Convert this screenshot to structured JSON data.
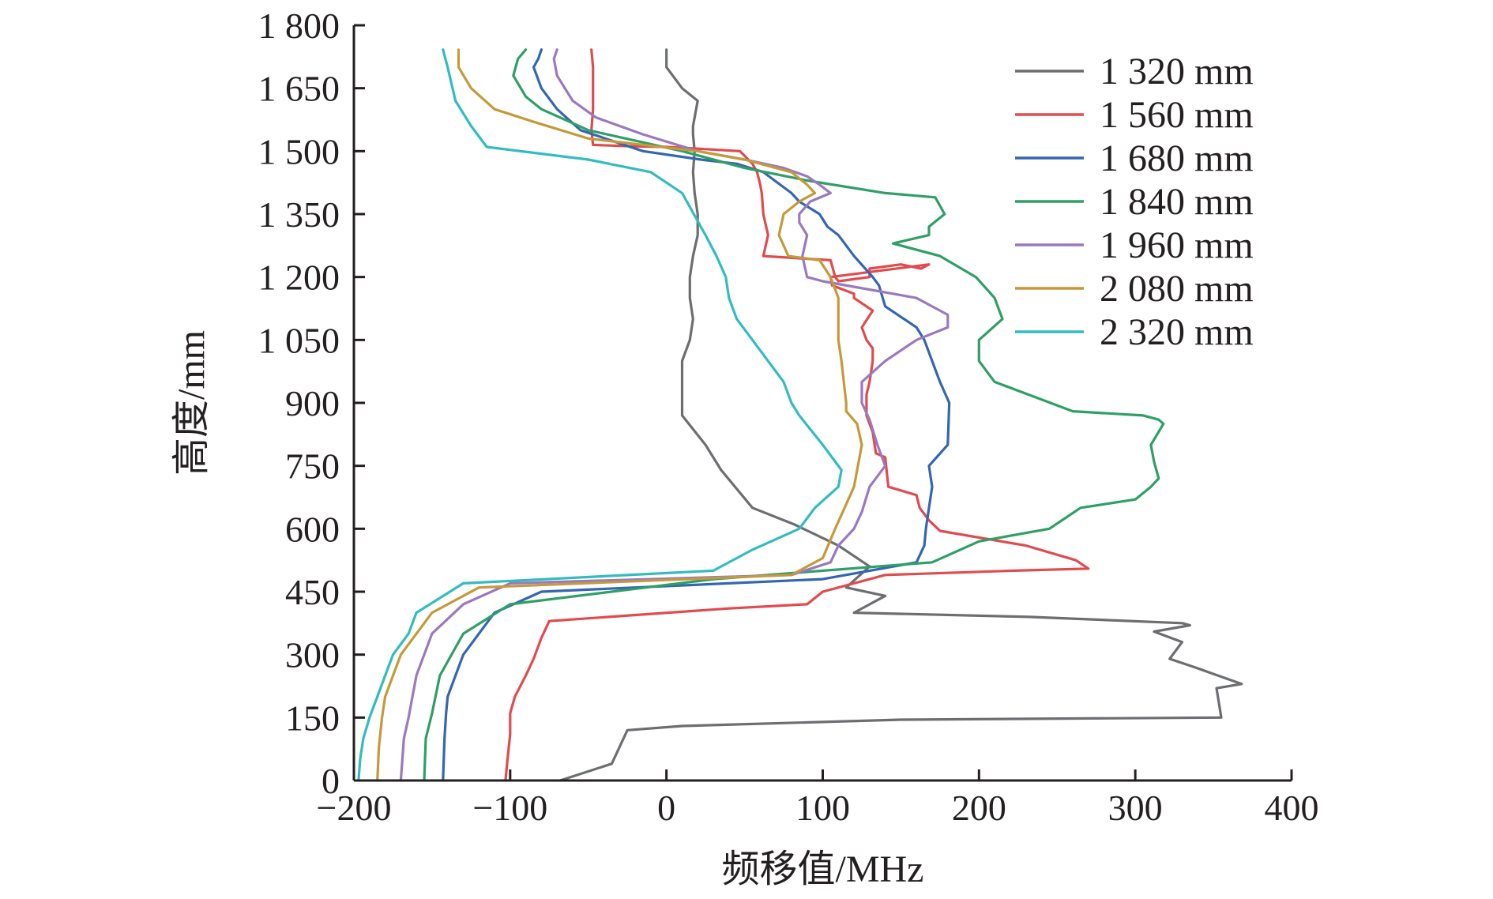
{
  "chart_data": {
    "type": "line",
    "title": "",
    "xlabel": "频移值/MHz",
    "ylabel": "高度/mm",
    "xlim": [
      -200,
      400
    ],
    "ylim": [
      0,
      1800
    ],
    "xticks": [
      -200,
      -100,
      0,
      100,
      200,
      300,
      400
    ],
    "xtick_labels": [
      "−200",
      "−100",
      "0",
      "100",
      "200",
      "300",
      "400"
    ],
    "yticks": [
      0,
      150,
      300,
      450,
      600,
      750,
      900,
      1050,
      1200,
      1350,
      1500,
      1650,
      1800
    ],
    "ytick_labels": [
      "0",
      "150",
      "300",
      "450",
      "600",
      "750",
      "900",
      "1 050",
      "1 200",
      "1 350",
      "1 500",
      "1 650",
      "1 800"
    ],
    "grid": false,
    "legend_position": "top-right",
    "series": [
      {
        "name": "1 320 mm",
        "color": "#6d6e71",
        "x": [
          -68,
          -35,
          -25,
          10,
          150,
          355,
          352,
          368,
          338,
          322,
          330,
          312,
          335,
          330,
          232,
          120,
          140,
          115,
          130,
          110,
          82,
          55,
          35,
          25,
          10,
          10,
          15,
          17,
          15,
          15,
          17,
          20,
          20,
          18,
          17,
          18,
          17,
          17,
          18,
          20,
          10,
          0,
          0
        ],
        "y": [
          0,
          40,
          120,
          130,
          145,
          150,
          220,
          230,
          270,
          290,
          330,
          355,
          370,
          375,
          390,
          400,
          440,
          460,
          510,
          560,
          610,
          650,
          740,
          800,
          870,
          1000,
          1050,
          1100,
          1150,
          1200,
          1250,
          1300,
          1350,
          1400,
          1450,
          1500,
          1540,
          1560,
          1580,
          1620,
          1650,
          1700,
          1742
        ]
      },
      {
        "name": "1 560 mm",
        "color": "#e04b4f",
        "x": [
          -103,
          -102,
          -100,
          -100,
          -97,
          -90,
          -85,
          -80,
          -75,
          40,
          90,
          100,
          140,
          222,
          270,
          262,
          230,
          175,
          168,
          162,
          160,
          142,
          140,
          134,
          132,
          128,
          128,
          128,
          130,
          132,
          132,
          128,
          125,
          132,
          120,
          120,
          106,
          105,
          168,
          163,
          150,
          130,
          130,
          110,
          108,
          105,
          62,
          65,
          62,
          61,
          60,
          58,
          55,
          47,
          0,
          -25,
          -47,
          -48,
          -47,
          -47,
          -48
        ],
        "y": [
          0,
          40,
          110,
          160,
          200,
          250,
          290,
          340,
          380,
          410,
          420,
          450,
          490,
          500,
          505,
          525,
          560,
          595,
          620,
          650,
          680,
          700,
          770,
          780,
          830,
          870,
          880,
          920,
          950,
          1000,
          1030,
          1050,
          1080,
          1120,
          1150,
          1160,
          1180,
          1200,
          1230,
          1220,
          1230,
          1220,
          1200,
          1190,
          1200,
          1240,
          1250,
          1300,
          1350,
          1400,
          1420,
          1450,
          1470,
          1500,
          1510,
          1512,
          1515,
          1550,
          1600,
          1700,
          1742
        ]
      },
      {
        "name": "1 680 mm",
        "color": "#3566b1",
        "x": [
          -143,
          -142,
          -141,
          -140,
          -130,
          -110,
          -80,
          100,
          160,
          165,
          166,
          168,
          170,
          168,
          180,
          181,
          175,
          170,
          165,
          160,
          140,
          136,
          132,
          120,
          110,
          103,
          98,
          85,
          80,
          62,
          45,
          22,
          -15,
          -55,
          -70,
          -80,
          -85,
          -82,
          -80
        ],
        "y": [
          0,
          100,
          160,
          200,
          300,
          400,
          450,
          480,
          520,
          560,
          600,
          650,
          700,
          750,
          800,
          900,
          950,
          1000,
          1050,
          1080,
          1130,
          1180,
          1200,
          1250,
          1300,
          1320,
          1350,
          1380,
          1400,
          1450,
          1470,
          1480,
          1500,
          1550,
          1600,
          1650,
          1700,
          1720,
          1742
        ]
      },
      {
        "name": "1 840 mm",
        "color": "#2f9f67",
        "x": [
          -155,
          -154,
          -150,
          -145,
          -130,
          -100,
          30,
          170,
          200,
          245,
          265,
          300,
          310,
          315,
          312,
          310,
          318,
          315,
          305,
          260,
          210,
          200,
          200,
          215,
          210,
          198,
          175,
          145,
          168,
          168,
          178,
          172,
          140,
          90,
          50,
          10,
          -50,
          -80,
          -90,
          -98,
          -95,
          -90
        ],
        "y": [
          0,
          100,
          160,
          250,
          350,
          420,
          480,
          520,
          570,
          600,
          650,
          670,
          700,
          720,
          760,
          800,
          850,
          860,
          870,
          880,
          950,
          1000,
          1050,
          1100,
          1150,
          1200,
          1250,
          1280,
          1300,
          1320,
          1350,
          1390,
          1400,
          1430,
          1460,
          1500,
          1550,
          1600,
          1630,
          1680,
          1720,
          1742
        ]
      },
      {
        "name": "1 960 mm",
        "color": "#9a79bd",
        "x": [
          -170,
          -168,
          -165,
          -160,
          -150,
          -130,
          -100,
          80,
          105,
          110,
          120,
          125,
          130,
          140,
          135,
          130,
          125,
          125,
          140,
          160,
          180,
          180,
          160,
          100,
          90,
          87,
          90,
          85,
          85,
          92,
          105,
          98,
          90,
          75,
          50,
          20,
          -15,
          -45,
          -60,
          -65,
          -70,
          -72,
          -70
        ],
        "y": [
          0,
          100,
          150,
          250,
          350,
          420,
          470,
          490,
          520,
          560,
          600,
          640,
          700,
          750,
          800,
          860,
          900,
          950,
          1000,
          1050,
          1080,
          1110,
          1150,
          1190,
          1200,
          1250,
          1300,
          1330,
          1350,
          1380,
          1400,
          1420,
          1440,
          1460,
          1480,
          1500,
          1540,
          1580,
          1620,
          1650,
          1680,
          1720,
          1742
        ]
      },
      {
        "name": "2 080 mm",
        "color": "#c49a3a",
        "x": [
          -185,
          -184,
          -182,
          -180,
          -170,
          -150,
          -120,
          80,
          100,
          108,
          120,
          125,
          122,
          115,
          115,
          112,
          110,
          110,
          110,
          105,
          98,
          78,
          72,
          75,
          85,
          95,
          90,
          80,
          70,
          50,
          20,
          -50,
          -85,
          -110,
          -125,
          -133,
          -133
        ],
        "y": [
          0,
          80,
          150,
          200,
          300,
          400,
          460,
          490,
          530,
          600,
          700,
          800,
          850,
          880,
          900,
          1000,
          1050,
          1100,
          1150,
          1200,
          1240,
          1250,
          1300,
          1350,
          1380,
          1400,
          1420,
          1450,
          1460,
          1480,
          1500,
          1530,
          1570,
          1600,
          1650,
          1700,
          1742
        ]
      },
      {
        "name": "2 320 mm",
        "color": "#33bcbf",
        "x": [
          -197,
          -196,
          -194,
          -190,
          -185,
          -180,
          -175,
          -165,
          -160,
          -130,
          30,
          55,
          85,
          95,
          110,
          112,
          100,
          85,
          80,
          75,
          65,
          55,
          45,
          40,
          38,
          32,
          25,
          10,
          -10,
          -50,
          -115,
          -125,
          -135,
          -140,
          -143
        ],
        "y": [
          0,
          50,
          100,
          150,
          200,
          250,
          300,
          350,
          400,
          470,
          500,
          550,
          600,
          650,
          700,
          740,
          800,
          870,
          900,
          950,
          1000,
          1050,
          1100,
          1150,
          1200,
          1250,
          1300,
          1400,
          1450,
          1480,
          1510,
          1560,
          1620,
          1700,
          1742
        ]
      }
    ]
  }
}
